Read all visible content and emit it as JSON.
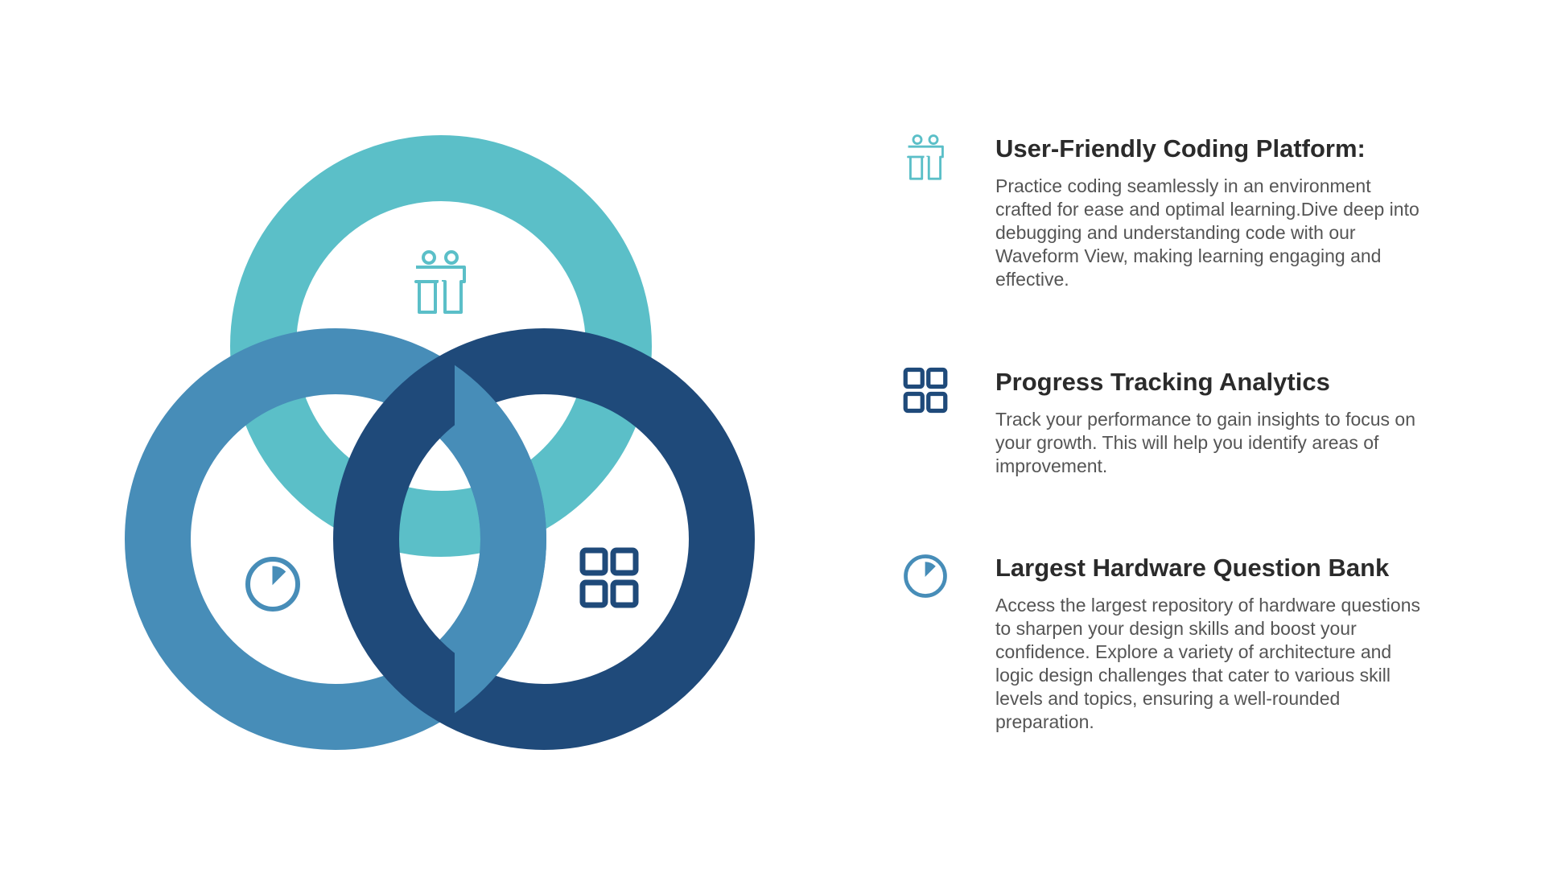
{
  "colors": {
    "teal": "#5BBFC8",
    "blue": "#478DB8",
    "dark": "#1F4A7A",
    "heading": "#2b2b2b",
    "body": "#555555"
  },
  "diagram": {
    "rings": [
      {
        "name": "teal-ring",
        "icon": "people-icon"
      },
      {
        "name": "blue-ring",
        "icon": "timer-icon"
      },
      {
        "name": "dark-ring",
        "icon": "grid-icon"
      }
    ]
  },
  "features": [
    {
      "icon": "people-icon",
      "title": "User-Friendly Coding Platform:",
      "body": "Practice coding seamlessly in an environment crafted for ease and optimal learning.Dive deep into debugging and understanding code with our Waveform View, making learning engaging and effective."
    },
    {
      "icon": "grid-icon",
      "title": "Progress Tracking Analytics",
      "body": "Track your performance to gain insights to focus on your growth. This will help you identify areas of improvement."
    },
    {
      "icon": "timer-icon",
      "title": "Largest Hardware Question Bank",
      "body": "Access the largest repository of hardware questions to sharpen your design skills and boost your confidence. Explore a variety of architecture and logic design challenges that cater to various skill levels and topics, ensuring a well-rounded preparation."
    }
  ]
}
